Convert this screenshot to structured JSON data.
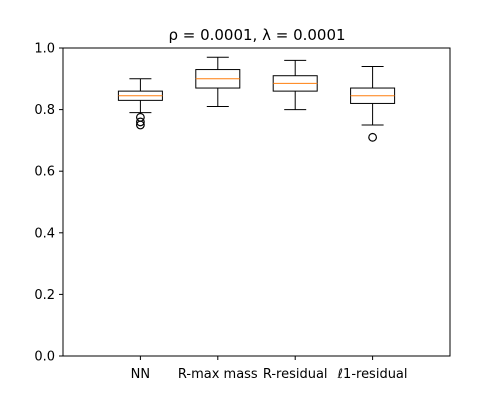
{
  "chart_data": {
    "type": "box",
    "title": "ρ = 0.0001, λ = 0.0001",
    "xlabel": "",
    "ylabel": "",
    "ylim": [
      0.0,
      1.0
    ],
    "yticks": [
      "0.0",
      "0.2",
      "0.4",
      "0.6",
      "0.8",
      "1.0"
    ],
    "grid": false,
    "median_color": "#ff7f0e",
    "box_color": "#000000",
    "categories": [
      "NN",
      "R-max mass",
      "R-residual",
      "ℓ1-residual"
    ],
    "boxes": [
      {
        "label": "NN",
        "whisker_low": 0.79,
        "q1": 0.83,
        "median": 0.845,
        "q3": 0.86,
        "whisker_high": 0.9,
        "outliers": [
          0.775,
          0.76,
          0.75
        ]
      },
      {
        "label": "R-max mass",
        "whisker_low": 0.81,
        "q1": 0.87,
        "median": 0.9,
        "q3": 0.93,
        "whisker_high": 0.97,
        "outliers": []
      },
      {
        "label": "R-residual",
        "whisker_low": 0.8,
        "q1": 0.86,
        "median": 0.885,
        "q3": 0.91,
        "whisker_high": 0.96,
        "outliers": []
      },
      {
        "label": "ℓ1-residual",
        "whisker_low": 0.75,
        "q1": 0.82,
        "median": 0.845,
        "q3": 0.87,
        "whisker_high": 0.94,
        "outliers": [
          0.71
        ]
      }
    ]
  }
}
